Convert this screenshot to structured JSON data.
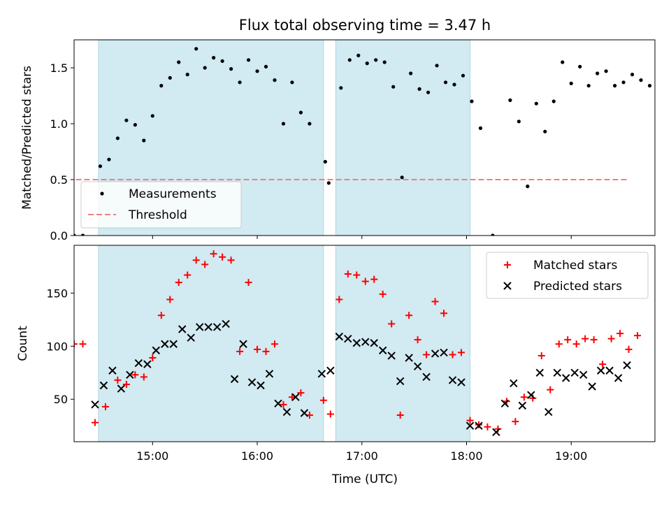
{
  "chart_data": {
    "title": "Flux total observing time = 3.47 h",
    "xlabel": "Time (UTC)",
    "x_ticks": [
      "15:00",
      "16:00",
      "17:00",
      "18:00",
      "19:00"
    ],
    "x_range": [
      "14:15",
      "19:48"
    ],
    "colors": {
      "shade": "#add8e6",
      "measurements": "#000000",
      "threshold": "#f08080",
      "matched": "#ff0000",
      "predicted": "#000000"
    },
    "panels": [
      {
        "type": "scatter",
        "ylabel": "Matched/Predicted stars",
        "ylim": [
          0,
          1.75
        ],
        "y_ticks": [
          "0.0",
          "0.5",
          "1.0",
          "1.5"
        ],
        "shaded_intervals": [
          [
            "14:29",
            "16:38"
          ],
          [
            "16:45",
            "18:02"
          ]
        ],
        "legend": {
          "placement": "lower-left",
          "entries": [
            "Measurements",
            "Threshold"
          ]
        },
        "threshold": {
          "name": "Threshold",
          "value": 0.5,
          "x_start": "14:16",
          "x_end": "19:32"
        },
        "series": [
          {
            "name": "Measurements",
            "marker": "dot",
            "points": [
              [
                "14:15",
                0.0
              ],
              [
                "14:20",
                0.0
              ],
              [
                "14:30",
                0.62
              ],
              [
                "14:35",
                0.68
              ],
              [
                "14:40",
                0.87
              ],
              [
                "14:45",
                1.03
              ],
              [
                "14:50",
                0.99
              ],
              [
                "14:55",
                0.85
              ],
              [
                "15:00",
                1.07
              ],
              [
                "15:05",
                1.34
              ],
              [
                "15:10",
                1.41
              ],
              [
                "15:15",
                1.55
              ],
              [
                "15:20",
                1.44
              ],
              [
                "15:25",
                1.67
              ],
              [
                "15:30",
                1.5
              ],
              [
                "15:35",
                1.59
              ],
              [
                "15:40",
                1.56
              ],
              [
                "15:45",
                1.49
              ],
              [
                "15:50",
                1.37
              ],
              [
                "15:55",
                1.57
              ],
              [
                "16:00",
                1.47
              ],
              [
                "16:05",
                1.51
              ],
              [
                "16:10",
                1.39
              ],
              [
                "16:15",
                1.0
              ],
              [
                "16:20",
                1.37
              ],
              [
                "16:25",
                1.1
              ],
              [
                "16:30",
                1.0
              ],
              [
                "16:39",
                0.66
              ],
              [
                "16:41",
                0.47
              ],
              [
                "16:48",
                1.32
              ],
              [
                "16:53",
                1.57
              ],
              [
                "16:58",
                1.61
              ],
              [
                "17:03",
                1.54
              ],
              [
                "17:08",
                1.57
              ],
              [
                "17:13",
                1.55
              ],
              [
                "17:18",
                1.33
              ],
              [
                "17:23",
                0.52
              ],
              [
                "17:28",
                1.45
              ],
              [
                "17:33",
                1.31
              ],
              [
                "17:38",
                1.28
              ],
              [
                "17:43",
                1.52
              ],
              [
                "17:48",
                1.37
              ],
              [
                "17:53",
                1.35
              ],
              [
                "17:58",
                1.43
              ],
              [
                "18:03",
                1.2
              ],
              [
                "18:08",
                0.96
              ],
              [
                "18:15",
                0.0
              ],
              [
                "18:25",
                1.21
              ],
              [
                "18:30",
                1.02
              ],
              [
                "18:35",
                0.44
              ],
              [
                "18:40",
                1.18
              ],
              [
                "18:45",
                0.93
              ],
              [
                "18:50",
                1.2
              ],
              [
                "18:55",
                1.55
              ],
              [
                "19:00",
                1.36
              ],
              [
                "19:05",
                1.51
              ],
              [
                "19:10",
                1.34
              ],
              [
                "19:15",
                1.45
              ],
              [
                "19:20",
                1.47
              ],
              [
                "19:25",
                1.34
              ],
              [
                "19:30",
                1.37
              ],
              [
                "19:35",
                1.44
              ],
              [
                "19:40",
                1.39
              ],
              [
                "19:45",
                1.34
              ]
            ]
          }
        ]
      },
      {
        "type": "scatter",
        "ylabel": "Count",
        "ylim": [
          10,
          195
        ],
        "y_ticks": [
          "50",
          "100",
          "150"
        ],
        "shaded_intervals": [
          [
            "14:29",
            "16:38"
          ],
          [
            "16:45",
            "18:02"
          ]
        ],
        "legend": {
          "placement": "top-right",
          "entries": [
            "Matched stars",
            "Predicted stars"
          ]
        },
        "series": [
          {
            "name": "Matched stars",
            "marker": "plus",
            "points": [
              [
                "14:15",
                102
              ],
              [
                "14:20",
                102
              ],
              [
                "14:27",
                28
              ],
              [
                "14:33",
                43
              ],
              [
                "14:40",
                68
              ],
              [
                "14:45",
                64
              ],
              [
                "14:50",
                73
              ],
              [
                "14:55",
                71
              ],
              [
                "15:00",
                89
              ],
              [
                "15:05",
                129
              ],
              [
                "15:10",
                144
              ],
              [
                "15:15",
                160
              ],
              [
                "15:20",
                167
              ],
              [
                "15:25",
                181
              ],
              [
                "15:30",
                177
              ],
              [
                "15:35",
                187
              ],
              [
                "15:40",
                184
              ],
              [
                "15:45",
                181
              ],
              [
                "15:50",
                95
              ],
              [
                "15:55",
                160
              ],
              [
                "16:00",
                97
              ],
              [
                "16:05",
                95
              ],
              [
                "16:10",
                102
              ],
              [
                "16:15",
                45
              ],
              [
                "16:20",
                52
              ],
              [
                "16:25",
                56
              ],
              [
                "16:30",
                35
              ],
              [
                "16:38",
                49
              ],
              [
                "16:42",
                36
              ],
              [
                "16:47",
                144
              ],
              [
                "16:52",
                168
              ],
              [
                "16:57",
                167
              ],
              [
                "17:02",
                161
              ],
              [
                "17:07",
                163
              ],
              [
                "17:12",
                149
              ],
              [
                "17:17",
                121
              ],
              [
                "17:22",
                35
              ],
              [
                "17:27",
                129
              ],
              [
                "17:32",
                106
              ],
              [
                "17:37",
                92
              ],
              [
                "17:42",
                142
              ],
              [
                "17:47",
                131
              ],
              [
                "17:52",
                92
              ],
              [
                "17:57",
                94
              ],
              [
                "18:02",
                30
              ],
              [
                "18:07",
                26
              ],
              [
                "18:12",
                24
              ],
              [
                "18:18",
                22
              ],
              [
                "18:23",
                48
              ],
              [
                "18:28",
                29
              ],
              [
                "18:33",
                52
              ],
              [
                "18:38",
                51
              ],
              [
                "18:43",
                91
              ],
              [
                "18:48",
                59
              ],
              [
                "18:53",
                102
              ],
              [
                "18:58",
                106
              ],
              [
                "19:03",
                102
              ],
              [
                "19:08",
                107
              ],
              [
                "19:13",
                106
              ],
              [
                "19:18",
                83
              ],
              [
                "19:23",
                107
              ],
              [
                "19:28",
                112
              ],
              [
                "19:33",
                97
              ],
              [
                "19:38",
                110
              ]
            ]
          },
          {
            "name": "Predicted stars",
            "marker": "x",
            "points": [
              [
                "14:27",
                45
              ],
              [
                "14:32",
                63
              ],
              [
                "14:37",
                77
              ],
              [
                "14:42",
                60
              ],
              [
                "14:47",
                73
              ],
              [
                "14:52",
                84
              ],
              [
                "14:57",
                83
              ],
              [
                "15:02",
                96
              ],
              [
                "15:07",
                102
              ],
              [
                "15:12",
                102
              ],
              [
                "15:17",
                116
              ],
              [
                "15:22",
                108
              ],
              [
                "15:27",
                118
              ],
              [
                "15:32",
                118
              ],
              [
                "15:37",
                118
              ],
              [
                "15:42",
                121
              ],
              [
                "15:47",
                69
              ],
              [
                "15:52",
                102
              ],
              [
                "15:57",
                66
              ],
              [
                "16:02",
                63
              ],
              [
                "16:07",
                74
              ],
              [
                "16:12",
                46
              ],
              [
                "16:17",
                38
              ],
              [
                "16:22",
                52
              ],
              [
                "16:27",
                37
              ],
              [
                "16:37",
                74
              ],
              [
                "16:42",
                77
              ],
              [
                "16:47",
                109
              ],
              [
                "16:52",
                107
              ],
              [
                "16:57",
                103
              ],
              [
                "17:02",
                104
              ],
              [
                "17:07",
                103
              ],
              [
                "17:12",
                96
              ],
              [
                "17:17",
                91
              ],
              [
                "17:22",
                67
              ],
              [
                "17:27",
                89
              ],
              [
                "17:32",
                81
              ],
              [
                "17:37",
                71
              ],
              [
                "17:42",
                93
              ],
              [
                "17:47",
                94
              ],
              [
                "17:52",
                68
              ],
              [
                "17:57",
                66
              ],
              [
                "18:02",
                25
              ],
              [
                "18:07",
                25
              ],
              [
                "18:17",
                19
              ],
              [
                "18:22",
                46
              ],
              [
                "18:27",
                65
              ],
              [
                "18:32",
                44
              ],
              [
                "18:37",
                54
              ],
              [
                "18:42",
                75
              ],
              [
                "18:47",
                38
              ],
              [
                "18:52",
                75
              ],
              [
                "18:57",
                70
              ],
              [
                "19:02",
                75
              ],
              [
                "19:07",
                73
              ],
              [
                "19:12",
                62
              ],
              [
                "19:17",
                77
              ],
              [
                "19:22",
                77
              ],
              [
                "19:27",
                70
              ],
              [
                "19:32",
                82
              ]
            ]
          }
        ]
      }
    ]
  }
}
